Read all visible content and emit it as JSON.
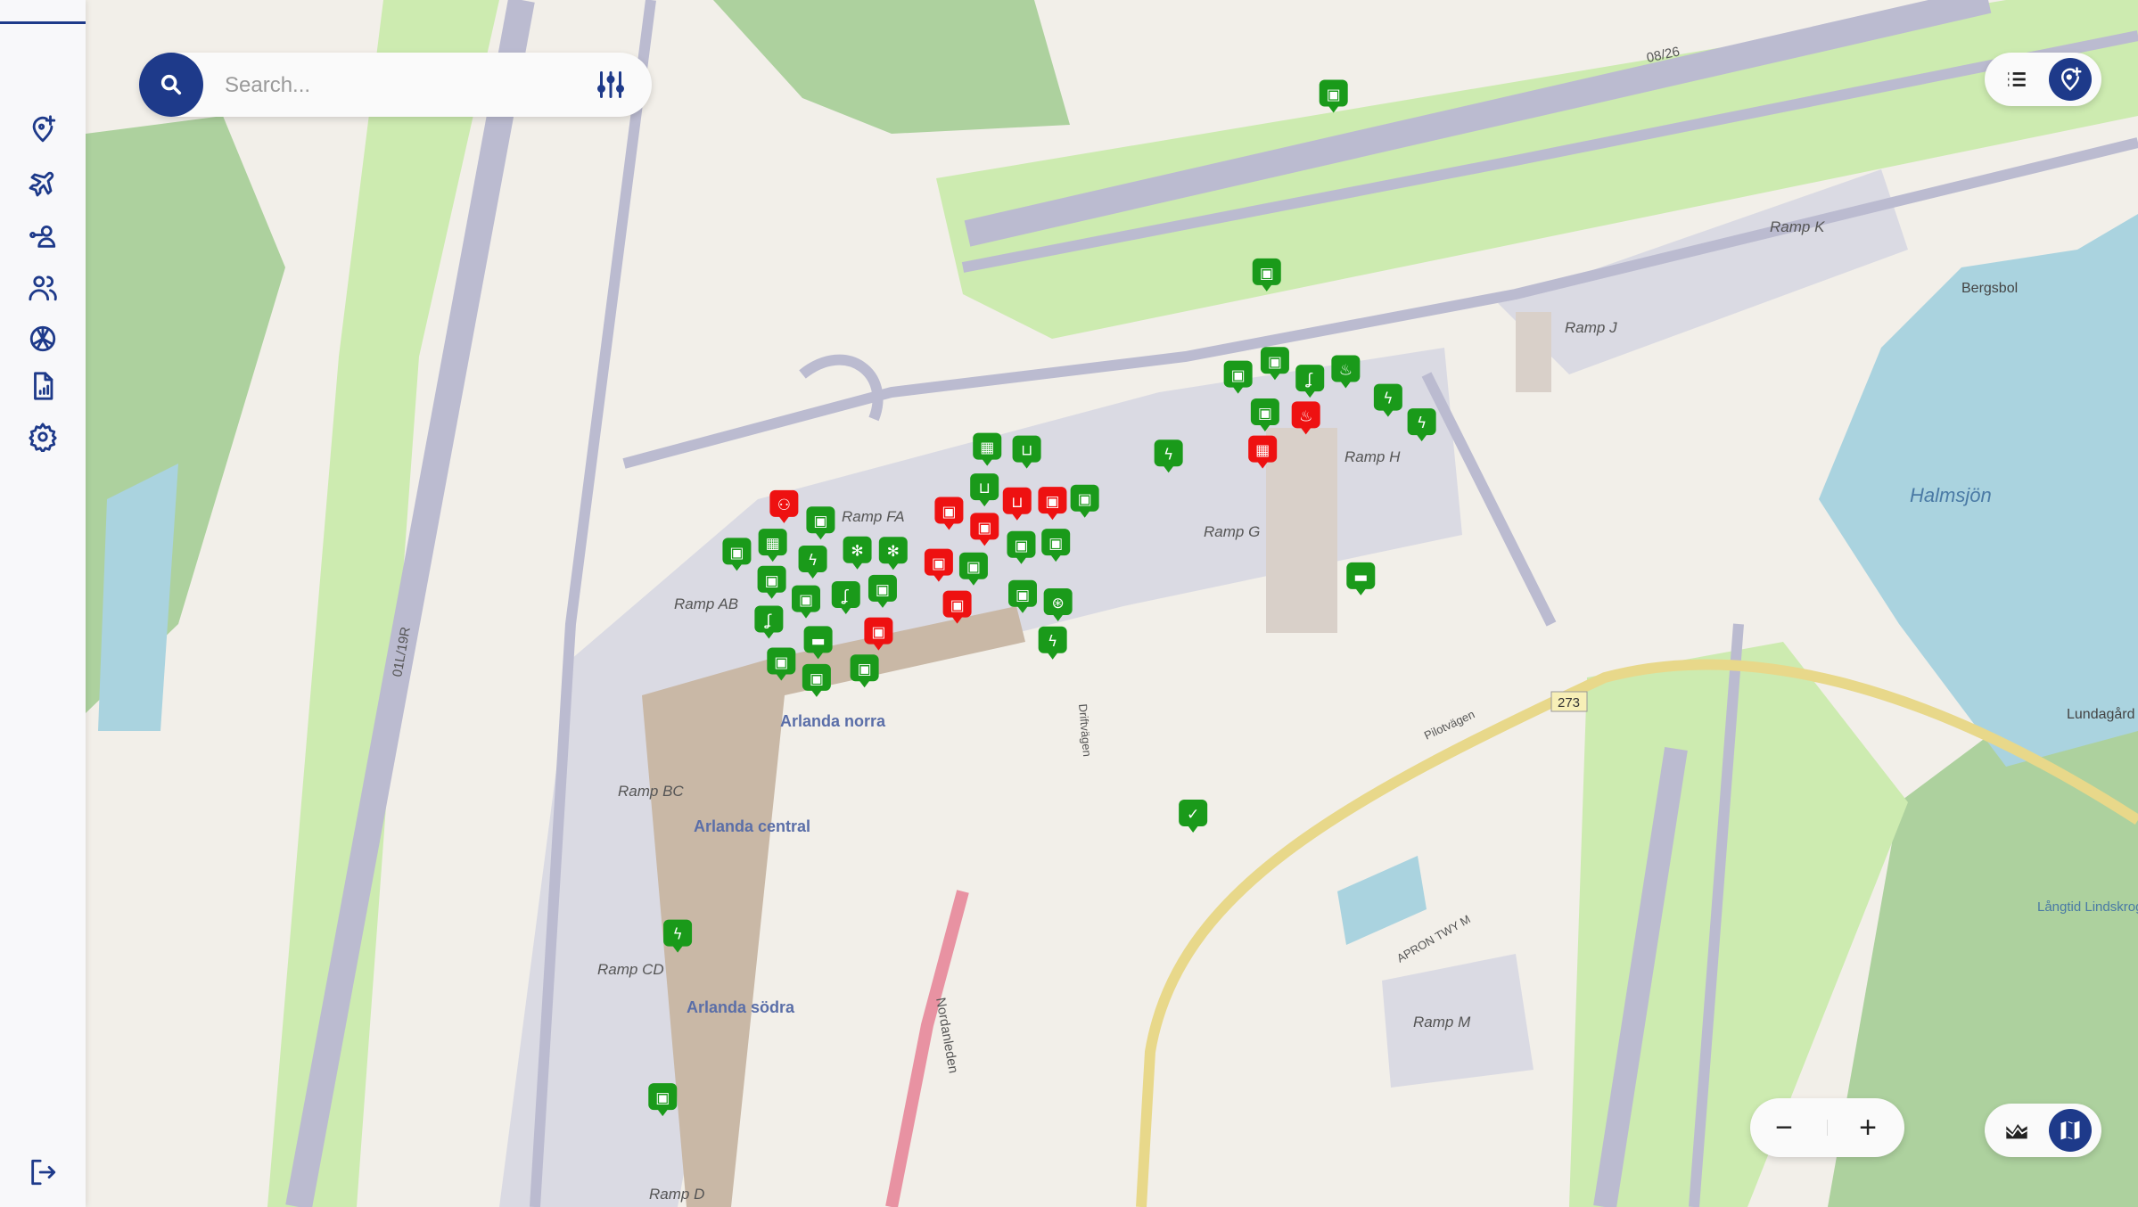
{
  "sidebar": {
    "items": [
      {
        "name": "add-location",
        "icon": "map-pin-plus-icon"
      },
      {
        "name": "flights",
        "icon": "airplane-icon"
      },
      {
        "name": "user-access",
        "icon": "user-key-icon"
      },
      {
        "name": "users",
        "icon": "users-icon"
      },
      {
        "name": "ai-assistant",
        "icon": "openai-icon"
      },
      {
        "name": "reports",
        "icon": "report-chart-icon"
      },
      {
        "name": "settings",
        "icon": "gear-icon"
      }
    ],
    "logout_icon": "logout-icon"
  },
  "search": {
    "placeholder": "Search...",
    "value": ""
  },
  "top_right": {
    "list_icon": "list-icon",
    "add_pin_icon": "map-pin-plus-icon",
    "active": "add-pin"
  },
  "zoom_controls": {
    "minus": "−",
    "plus": "+"
  },
  "layer_toggle": {
    "terrain_icon": "terrain-icon",
    "map_icon": "map-icon",
    "active": "map"
  },
  "colors": {
    "accent": "#1e3a8a",
    "marker_ok": "#1a9a1a",
    "marker_alert": "#ee1111"
  },
  "map_labels": {
    "ramp_fa": "Ramp FA",
    "ramp_ab": "Ramp AB",
    "ramp_bc": "Ramp BC",
    "ramp_cd": "Ramp CD",
    "ramp_d": "Ramp D",
    "ramp_g": "Ramp G",
    "ramp_h": "Ramp H",
    "ramp_j": "Ramp J",
    "ramp_k": "Ramp K",
    "ramp_m": "Ramp M",
    "lake": "Halmsjön",
    "bergsbol": "Bergsbol",
    "lundagard": "Lundagård",
    "arlanda_norra": "Arlanda norra",
    "arlanda_central": "Arlanda central",
    "arlanda_sodra": "Arlanda södra",
    "road_273": "273",
    "langtid": "Långtid Lindskrog",
    "runway_0826": "08/26",
    "runway_01l": "01L/19R",
    "nordanleden": "Nordanleden",
    "pilotvagen": "Pilotvägen",
    "driftvagen": "Driftvägen",
    "apron": "APRON TWY M"
  },
  "markers": [
    {
      "icon": "luggage",
      "status": "ok"
    },
    {
      "icon": "luggage",
      "status": "ok"
    },
    {
      "icon": "luggage",
      "status": "ok"
    },
    {
      "icon": "luggage",
      "status": "ok"
    },
    {
      "icon": "hook",
      "status": "ok"
    },
    {
      "icon": "luggage",
      "status": "ok"
    },
    {
      "icon": "fire",
      "status": "alert"
    },
    {
      "icon": "conveyor",
      "status": "alert"
    },
    {
      "icon": "fire",
      "status": "ok"
    },
    {
      "icon": "bolt",
      "status": "ok"
    },
    {
      "icon": "bolt",
      "status": "ok"
    },
    {
      "icon": "bolt",
      "status": "ok"
    },
    {
      "icon": "car",
      "status": "ok"
    },
    {
      "icon": "check",
      "status": "ok"
    },
    {
      "icon": "conveyor",
      "status": "ok"
    },
    {
      "icon": "cart",
      "status": "ok"
    },
    {
      "icon": "cart",
      "status": "ok"
    },
    {
      "icon": "luggage",
      "status": "alert"
    },
    {
      "icon": "luggage",
      "status": "alert"
    },
    {
      "icon": "cart",
      "status": "alert"
    },
    {
      "icon": "luggage",
      "status": "alert"
    },
    {
      "icon": "luggage",
      "status": "ok"
    },
    {
      "icon": "luggage",
      "status": "ok"
    },
    {
      "icon": "luggage",
      "status": "alert"
    },
    {
      "icon": "luggage",
      "status": "alert"
    },
    {
      "icon": "luggage",
      "status": "ok"
    },
    {
      "icon": "luggage",
      "status": "ok"
    },
    {
      "icon": "luggage",
      "status": "ok"
    },
    {
      "icon": "tractor",
      "status": "ok"
    },
    {
      "icon": "bolt",
      "status": "ok"
    },
    {
      "icon": "toilet",
      "status": "alert"
    },
    {
      "icon": "luggage",
      "status": "ok"
    },
    {
      "icon": "bolt",
      "status": "ok"
    },
    {
      "icon": "snowflake",
      "status": "ok"
    },
    {
      "icon": "conveyor",
      "status": "ok"
    },
    {
      "icon": "luggage",
      "status": "ok"
    },
    {
      "icon": "luggage",
      "status": "ok"
    },
    {
      "icon": "luggage",
      "status": "ok"
    },
    {
      "icon": "hook",
      "status": "ok"
    },
    {
      "icon": "hook",
      "status": "ok"
    },
    {
      "icon": "luggage",
      "status": "ok"
    },
    {
      "icon": "car",
      "status": "ok"
    },
    {
      "icon": "luggage",
      "status": "alert"
    },
    {
      "icon": "snowflake",
      "status": "ok"
    },
    {
      "icon": "luggage",
      "status": "ok"
    },
    {
      "icon": "luggage",
      "status": "ok"
    },
    {
      "icon": "luggage",
      "status": "ok"
    },
    {
      "icon": "bolt",
      "status": "ok"
    },
    {
      "icon": "luggage",
      "status": "ok"
    }
  ]
}
